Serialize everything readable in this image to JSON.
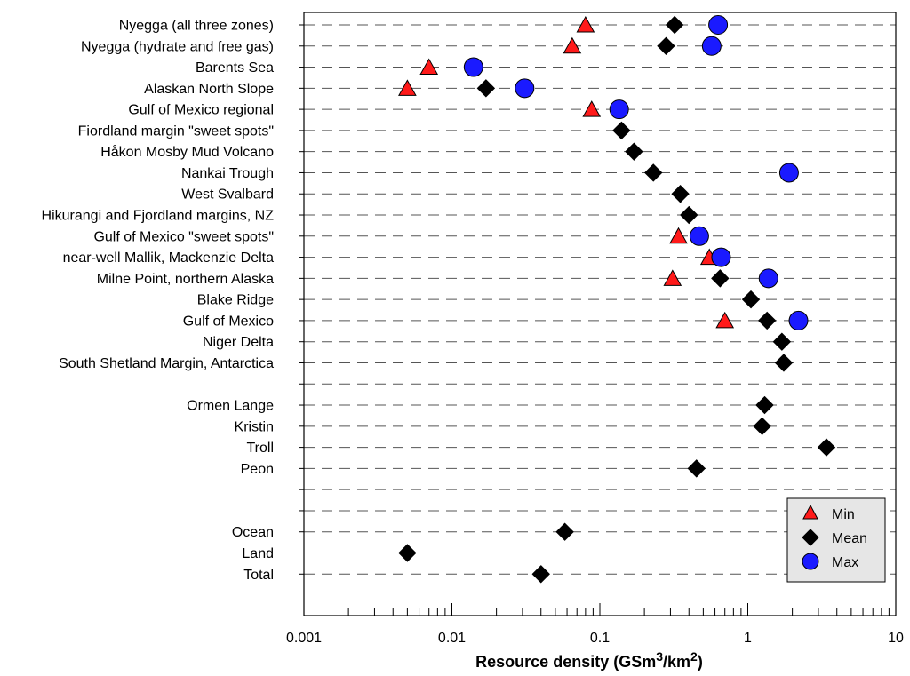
{
  "chart_data": {
    "type": "scatter",
    "title": "",
    "xlabel_main": "Resource density (GSm",
    "xlabel_sup1": "3",
    "xlabel_mid": "/km",
    "xlabel_sup2": "2",
    "xlabel_end": ")",
    "xscale": "log",
    "xlim": [
      0.001,
      10
    ],
    "xticks": [
      0.001,
      0.01,
      0.1,
      1,
      10
    ],
    "xtick_labels": [
      "0.001",
      "0.01",
      "0.1",
      "1",
      "10"
    ],
    "grid": "dashed horizontal",
    "legend_position": "bottom-right",
    "colors": {
      "min": "#ff1a1a",
      "mean": "#000000",
      "max": "#1a1aff",
      "legend_bg": "#e6e6e6"
    },
    "categories": [
      "Nyegga (all three zones)",
      "Nyegga (hydrate and free gas)",
      "Barents Sea",
      "Alaskan North Slope",
      "Gulf of Mexico regional",
      "Fiordland margin \"sweet spots\"",
      "Håkon Mosby Mud Volcano",
      "Nankai Trough",
      "West Svalbard",
      "Hikurangi and Fjordland margins, NZ",
      "Gulf of Mexico \"sweet spots\"",
      "near-well Mallik, Mackenzie Delta",
      "Milne Point, northern Alaska",
      "Blake Ridge",
      "Gulf of Mexico",
      "Niger Delta",
      "South Shetland Margin, Antarctica",
      "",
      "Ormen Lange",
      "Kristin",
      "Troll",
      "Peon",
      "",
      "",
      "Ocean",
      "Land",
      "Total"
    ],
    "series": [
      {
        "name": "Min",
        "marker": "triangle",
        "values": [
          0.08,
          0.065,
          0.007,
          0.005,
          0.088,
          null,
          null,
          null,
          null,
          null,
          0.34,
          0.55,
          0.31,
          null,
          0.7,
          null,
          null,
          null,
          null,
          null,
          null,
          null,
          null,
          null,
          null,
          null,
          null
        ]
      },
      {
        "name": "Mean",
        "marker": "diamond",
        "values": [
          0.32,
          0.28,
          null,
          0.017,
          null,
          0.14,
          0.17,
          0.23,
          0.35,
          0.4,
          null,
          null,
          0.65,
          1.05,
          1.35,
          1.7,
          1.75,
          null,
          1.3,
          1.25,
          3.4,
          0.45,
          null,
          null,
          0.058,
          0.005,
          0.04
        ]
      },
      {
        "name": "Max",
        "marker": "circle",
        "values": [
          0.63,
          0.57,
          0.014,
          0.031,
          0.135,
          null,
          null,
          1.9,
          null,
          null,
          0.47,
          0.66,
          1.38,
          null,
          2.2,
          null,
          null,
          null,
          null,
          null,
          null,
          null,
          null,
          null,
          null,
          null,
          null
        ]
      }
    ]
  }
}
